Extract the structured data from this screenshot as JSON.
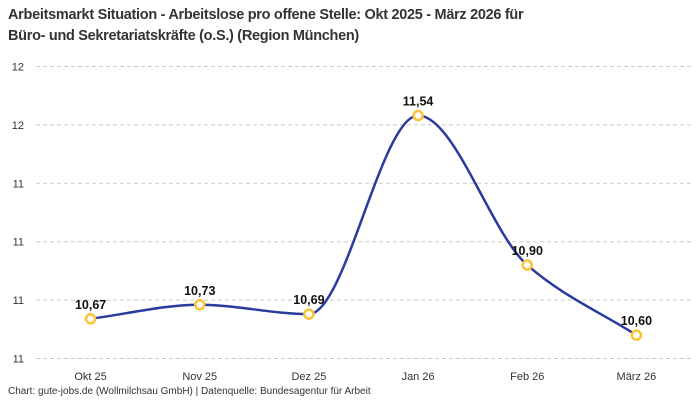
{
  "header": {
    "title_line1": "Arbeitsmarkt Situation - Arbeitslose pro offene Stelle: Okt 2025 - März 2026 für",
    "title_line2": "Büro- und Sekretariatskräfte (o.S.) (Region München)"
  },
  "footer": {
    "credit": "Chart: gute-jobs.de (Wollmilchsau GmbH) | Datenquelle: Bundesagentur für Arbeit"
  },
  "chart_data": {
    "type": "line",
    "title": "Arbeitsmarkt Situation - Arbeitslose pro offene Stelle: Okt 2025 - März 2026 für Büro- und Sekretariatskräfte (o.S.) (Region München)",
    "categories": [
      "Okt 25",
      "Nov 25",
      "Dez 25",
      "Jan 26",
      "Feb 26",
      "März 26"
    ],
    "values": [
      10.67,
      10.73,
      10.69,
      11.54,
      10.9,
      10.6
    ],
    "point_labels": [
      "10,67",
      "10,73",
      "10,69",
      "11,54",
      "10,90",
      "10,60"
    ],
    "xlabel": "",
    "ylabel": "",
    "ylim": [
      10.5,
      11.75
    ],
    "yticks": {
      "values": [
        10.5,
        10.75,
        11.0,
        11.25,
        11.5,
        11.75
      ],
      "labels": [
        "11",
        "11",
        "11",
        "11",
        "12",
        "12"
      ]
    },
    "grid": "horizontal-dashed",
    "legend": "none",
    "curve": "monotone",
    "colors": {
      "line": "#2a3b9d",
      "marker_ring": "#fbc437",
      "marker_fill": "#ffffff",
      "grid": "#cccccc",
      "axis_text": "#333333",
      "point_label_text": "#111111",
      "title_text": "#333333",
      "background": "#ffffff"
    }
  }
}
